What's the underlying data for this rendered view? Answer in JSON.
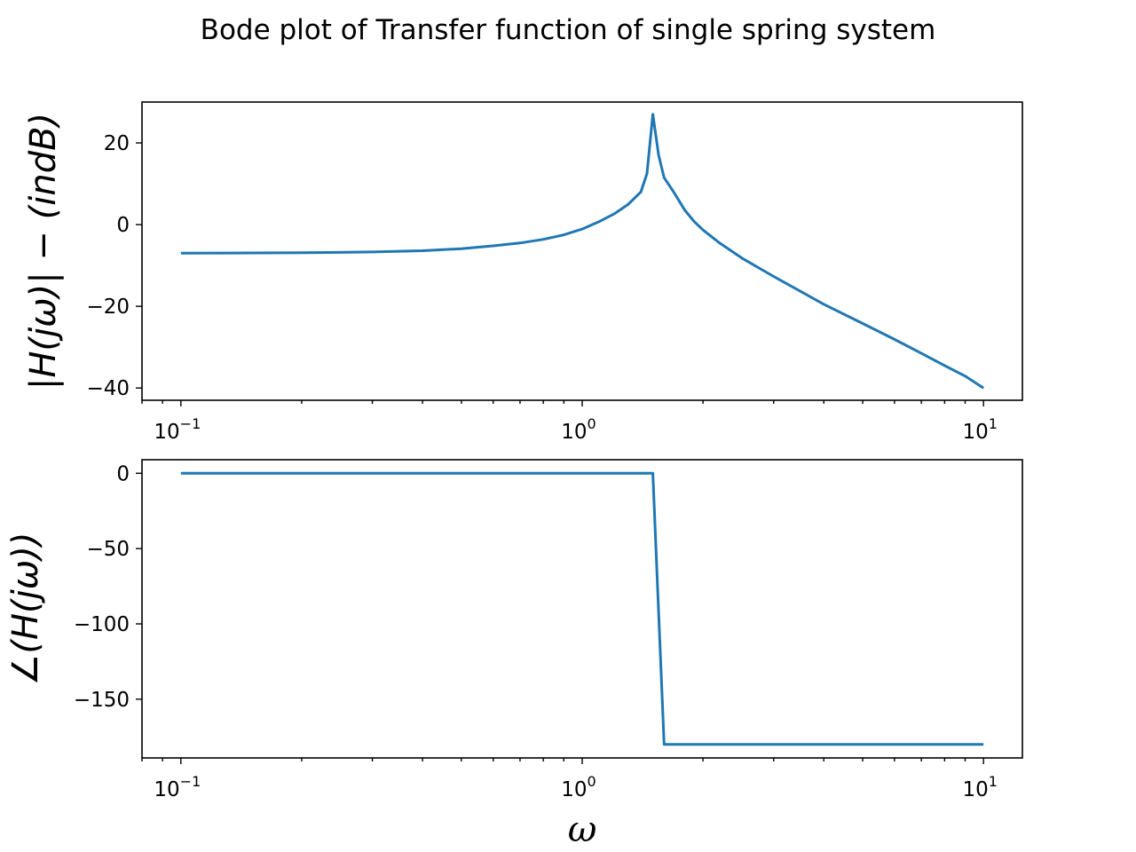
{
  "chart_data": {
    "type": "line",
    "title": "Bode plot of Transfer function of single spring system",
    "x_scale": "log",
    "x_range": [
      0.08,
      12.5
    ],
    "x_ticks": [
      {
        "value": 0.1,
        "base": "10",
        "exp": "−1"
      },
      {
        "value": 1,
        "base": "10",
        "exp": "0"
      },
      {
        "value": 10,
        "base": "10",
        "exp": "1"
      }
    ],
    "xlabel": "ω",
    "grid": false,
    "subplots": [
      {
        "name": "magnitude",
        "ylabel": "|H(jω)| − (indB)",
        "ylim": [
          -43,
          30
        ],
        "y_ticks": [
          {
            "value": 20,
            "label": "20"
          },
          {
            "value": 0,
            "label": "0"
          },
          {
            "value": -20,
            "label": "−20"
          },
          {
            "value": -40,
            "label": "−40"
          }
        ],
        "series": [
          {
            "color": "#1f77b4",
            "x": [
              0.1,
              0.2,
              0.3,
              0.4,
              0.5,
              0.6,
              0.7,
              0.8,
              0.9,
              1.0,
              1.1,
              1.2,
              1.3,
              1.4,
              1.45,
              1.5,
              1.55,
              1.6,
              1.7,
              1.8,
              1.9,
              2.0,
              2.2,
              2.5,
              3.0,
              4.0,
              5.0,
              6.0,
              7.0,
              8.0,
              9.0,
              10.0
            ],
            "y": [
              -7.0,
              -6.9,
              -6.7,
              -6.4,
              -5.9,
              -5.2,
              -4.5,
              -3.6,
              -2.5,
              -1.1,
              0.7,
              2.6,
              4.9,
              8.0,
              12.5,
              27.0,
              17.0,
              11.5,
              7.6,
              3.6,
              0.8,
              -1.3,
              -4.5,
              -8.2,
              -12.7,
              -19.5,
              -24.2,
              -28.1,
              -31.5,
              -34.5,
              -37.1,
              -40.0
            ]
          }
        ]
      },
      {
        "name": "phase",
        "ylabel": "∠(H(jω))",
        "ylim": [
          -189,
          9
        ],
        "y_ticks": [
          {
            "value": 0,
            "label": "0"
          },
          {
            "value": -50,
            "label": "−50"
          },
          {
            "value": -100,
            "label": "−100"
          },
          {
            "value": -150,
            "label": "−150"
          }
        ],
        "series": [
          {
            "color": "#1f77b4",
            "x": [
              0.1,
              0.5,
              1.0,
              1.5,
              1.6,
              3.0,
              10.0
            ],
            "y": [
              0,
              0,
              0,
              0,
              -180,
              -180,
              -180
            ]
          }
        ]
      }
    ]
  }
}
